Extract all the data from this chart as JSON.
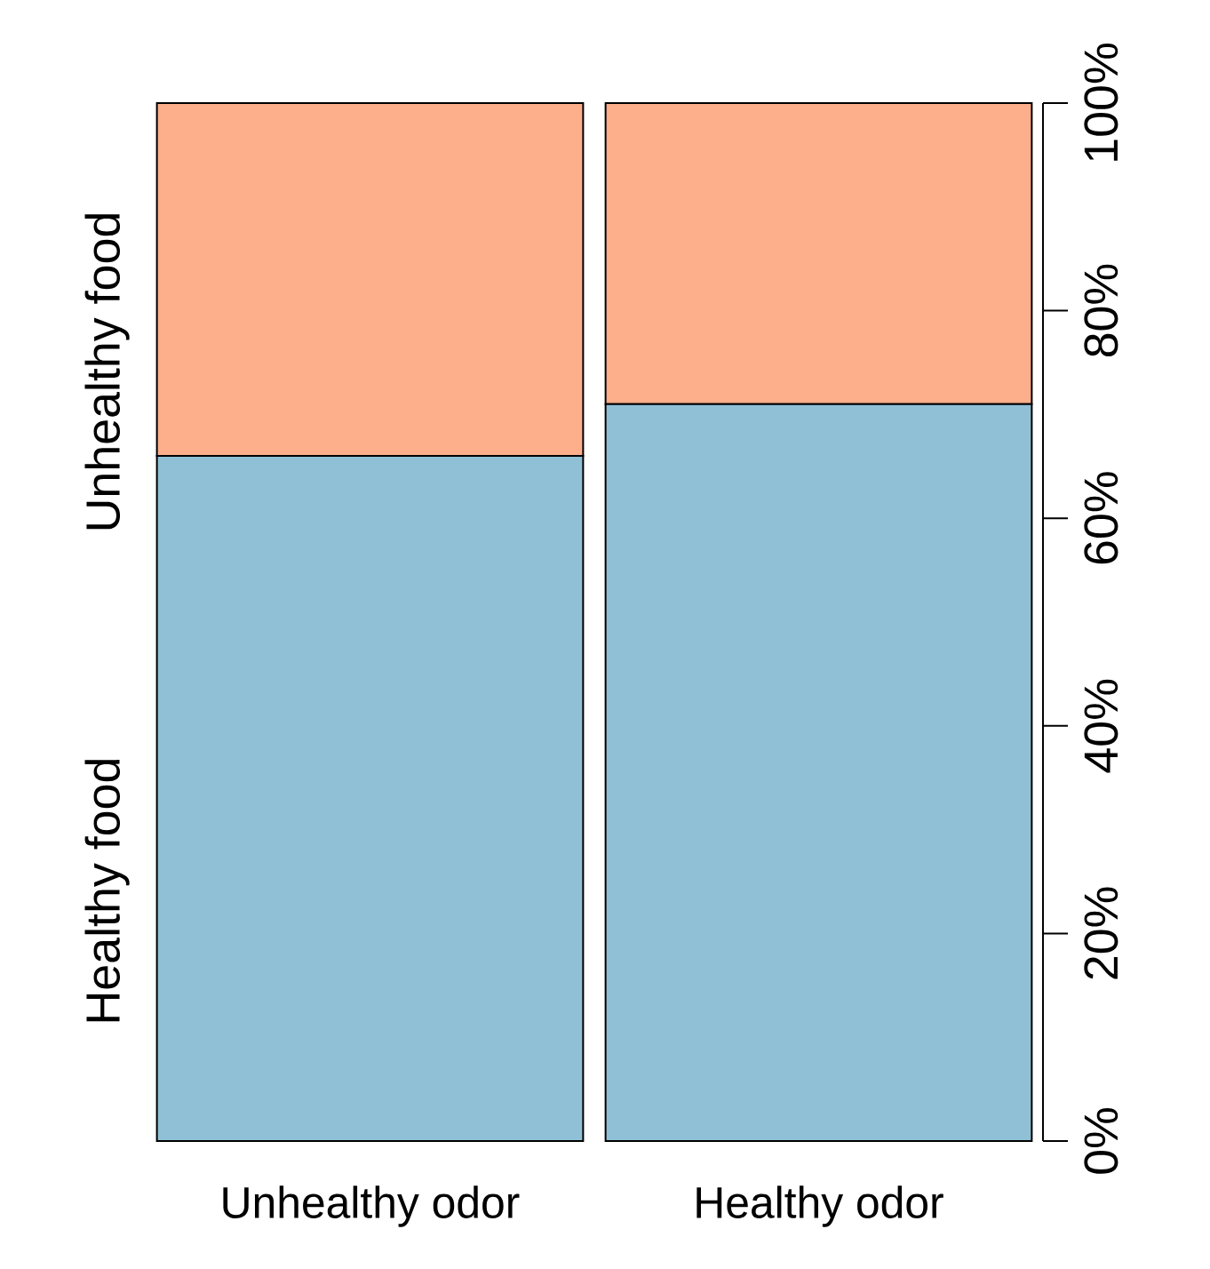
{
  "chart_data": {
    "type": "bar",
    "stacked": true,
    "categories": [
      "Unhealthy odor",
      "Healthy odor"
    ],
    "series": [
      {
        "name": "Healthy food",
        "color": "#8fc0d6",
        "values": [
          66,
          71
        ]
      },
      {
        "name": "Unhealthy food",
        "color": "#fdae8b",
        "values": [
          34,
          29
        ]
      }
    ],
    "ylim": [
      0,
      100
    ],
    "yticks": [
      {
        "value": 0,
        "label": "0%"
      },
      {
        "value": 20,
        "label": "20%"
      },
      {
        "value": 40,
        "label": "40%"
      },
      {
        "value": 60,
        "label": "60%"
      },
      {
        "value": 80,
        "label": "80%"
      },
      {
        "value": 100,
        "label": "100%"
      }
    ],
    "legend": false
  }
}
